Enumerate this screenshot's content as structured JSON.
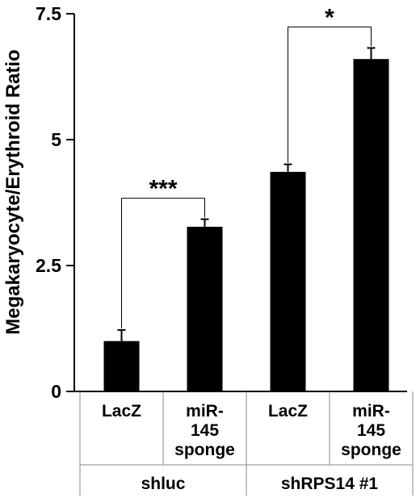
{
  "chart_data": {
    "type": "bar",
    "ylabel": "Megakaryocyte/Erythroid Ratio",
    "ylim": [
      0,
      7.5
    ],
    "yticks": [
      "0",
      "2.5",
      "5",
      "7.5"
    ],
    "categories": [
      [
        "LacZ"
      ],
      [
        "miR-",
        "145",
        "sponge"
      ],
      [
        "LacZ"
      ],
      [
        "miR-",
        "145",
        "sponge"
      ]
    ],
    "values": [
      1.0,
      3.27,
      4.36,
      6.6
    ],
    "errors": [
      0.22,
      0.15,
      0.15,
      0.22
    ],
    "groups": [
      {
        "label": "shluc",
        "members": [
          0,
          1
        ]
      },
      {
        "label": "shRPS14 #1",
        "members": [
          2,
          3
        ]
      }
    ],
    "significance": [
      {
        "from": 0,
        "to": 1,
        "label": "***"
      },
      {
        "from": 2,
        "to": 3,
        "label": "*"
      }
    ],
    "colors": {
      "bar": "#000000",
      "axis": "#000000",
      "separator": "#888888"
    }
  }
}
